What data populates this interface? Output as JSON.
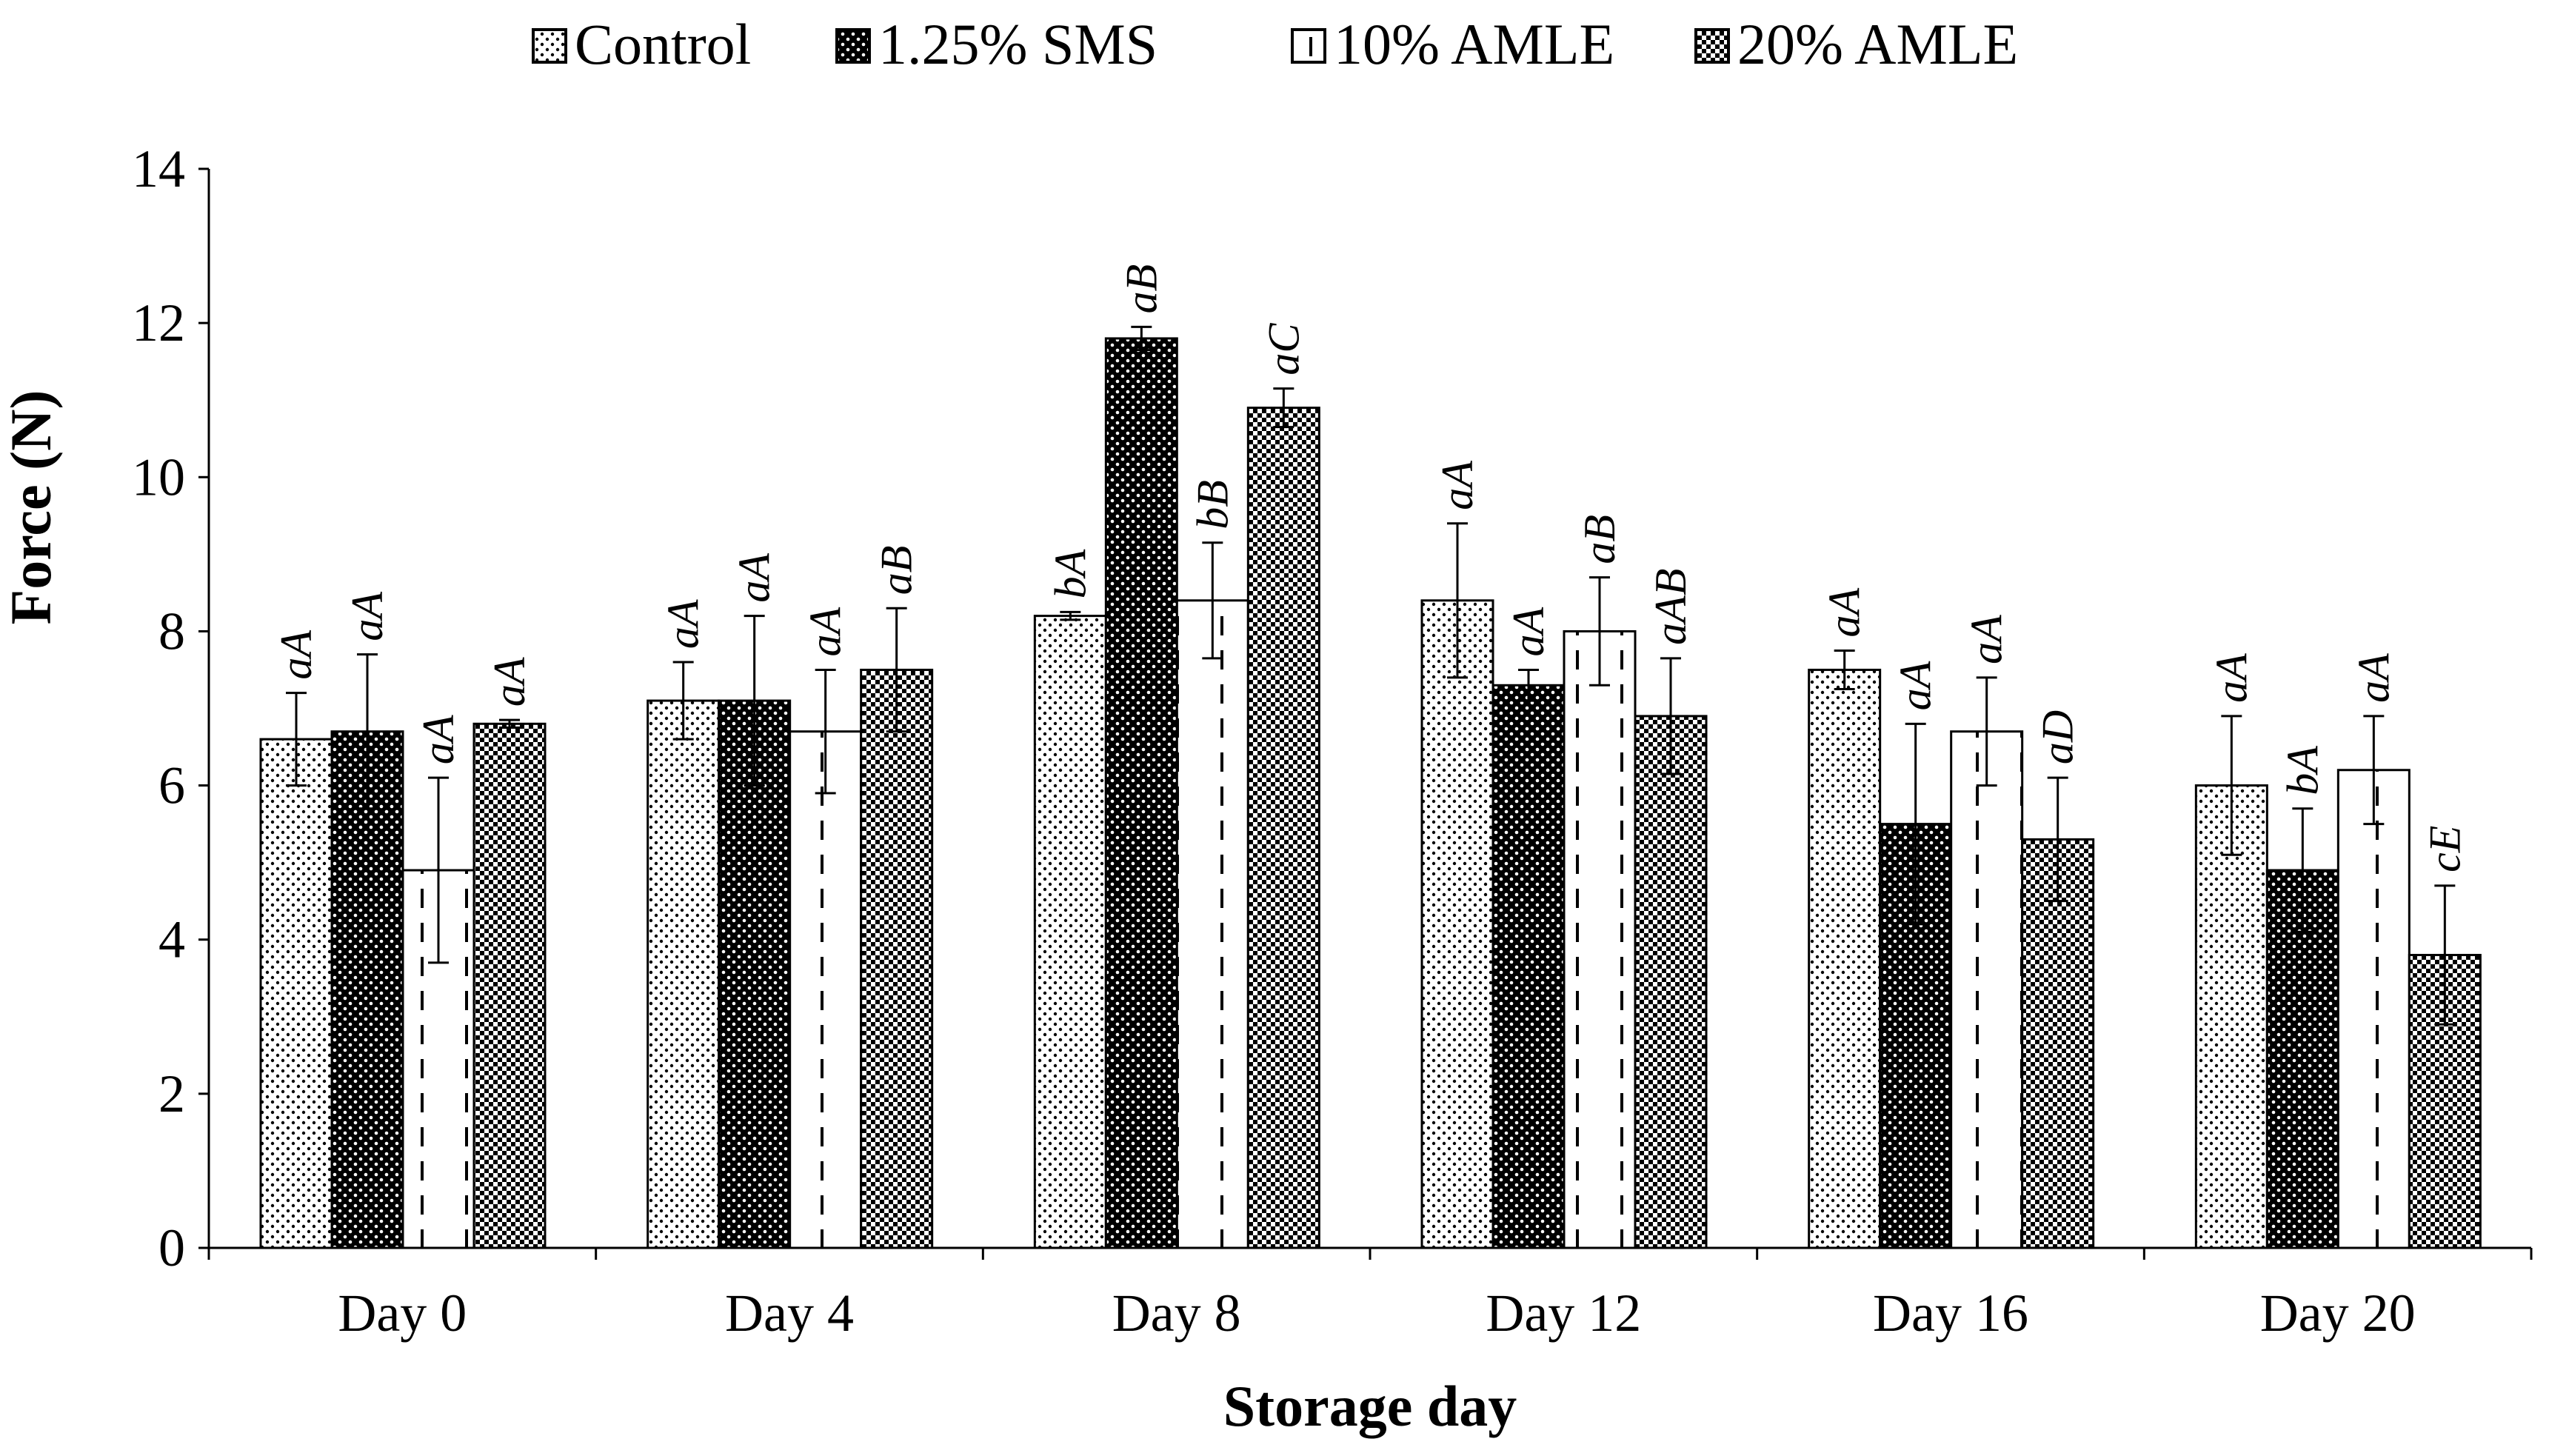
{
  "chart_data": {
    "type": "bar",
    "title": "",
    "xlabel": "Storage day",
    "ylabel": "Force (N)",
    "ylim": [
      0,
      14
    ],
    "yticks": [
      0,
      2,
      4,
      6,
      8,
      10,
      12,
      14
    ],
    "legend_position": "top-center",
    "grid": false,
    "categories": [
      "Day 0",
      "Day 4",
      "Day 8",
      "Day 12",
      "Day 16",
      "Day 20"
    ],
    "series": [
      {
        "name": "Control",
        "pattern": "dots-light",
        "values": [
          6.6,
          7.1,
          8.2,
          8.4,
          7.5,
          6.0
        ],
        "errors": [
          0.6,
          0.5,
          0.05,
          1.0,
          0.25,
          0.9
        ],
        "labels": [
          "aA",
          "aA",
          "bA",
          "aA",
          "aA",
          "aA"
        ]
      },
      {
        "name": "1.25% SMS",
        "pattern": "dots-dark",
        "values": [
          6.7,
          7.1,
          11.8,
          7.3,
          5.5,
          4.9
        ],
        "errors": [
          1.0,
          1.1,
          0.15,
          0.2,
          1.3,
          0.8
        ],
        "labels": [
          "aA",
          "aA",
          "aB",
          "aA",
          "aA",
          "bA"
        ]
      },
      {
        "name": "10% AMLE",
        "pattern": "dashes",
        "values": [
          4.9,
          6.7,
          8.4,
          8.0,
          6.7,
          6.2
        ],
        "errors": [
          1.2,
          0.8,
          0.75,
          0.7,
          0.7,
          0.7
        ],
        "labels": [
          "aA",
          "aA",
          "bB",
          "aB",
          "aA",
          "aA"
        ]
      },
      {
        "name": "20% AMLE",
        "pattern": "checker",
        "values": [
          6.8,
          7.5,
          10.9,
          6.9,
          5.3,
          3.8
        ],
        "errors": [
          0.05,
          0.8,
          0.25,
          0.75,
          0.8,
          0.9
        ],
        "labels": [
          "aA",
          "aB",
          "aC",
          "aAB",
          "aD",
          "cE"
        ]
      }
    ]
  }
}
